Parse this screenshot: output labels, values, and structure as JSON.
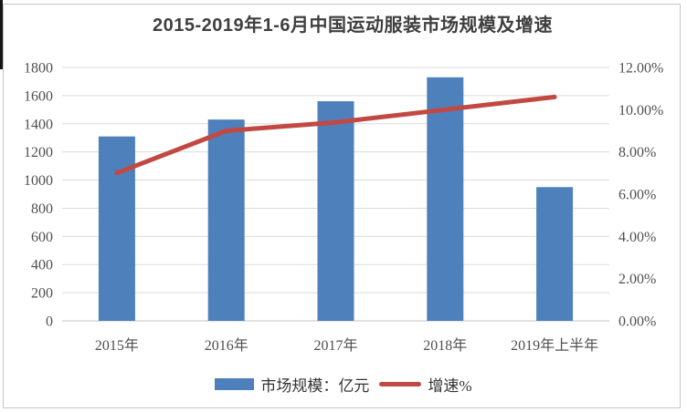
{
  "chart_data": {
    "type": "combo-bar-line",
    "title": "2015-2019年1-6月中国运动服装市场规模及增速",
    "categories": [
      "2015年",
      "2016年",
      "2017年",
      "2018年",
      "2019年上半年"
    ],
    "series": [
      {
        "name": "市场规模：亿元",
        "type": "bar",
        "axis": "left",
        "color": "#4E80BC",
        "values": [
          1310,
          1430,
          1560,
          1730,
          950
        ]
      },
      {
        "name": "增速%",
        "type": "line",
        "axis": "right",
        "color": "#C24943",
        "values": [
          7.0,
          9.0,
          9.4,
          10.0,
          10.6
        ]
      }
    ],
    "left_axis": {
      "min": 0,
      "max": 1800,
      "step": 200,
      "tick_labels": [
        "0",
        "200",
        "400",
        "600",
        "800",
        "1000",
        "1200",
        "1400",
        "1600",
        "1800"
      ]
    },
    "right_axis": {
      "min": 0,
      "max": 12,
      "step": 2,
      "tick_labels": [
        "0.00%",
        "2.00%",
        "4.00%",
        "6.00%",
        "8.00%",
        "10.00%",
        "12.00%"
      ]
    },
    "grid": true,
    "legend_position": "bottom"
  },
  "colors": {
    "bar": "#4E80BC",
    "line": "#C24943",
    "gridline": "#DBDBDB",
    "axis_line": "#C3C3C3",
    "tick_text": "#4F4F4F",
    "title_text": "#3F3F3F",
    "legend_text": "#333333",
    "frame_border": "#C6C6C6"
  }
}
